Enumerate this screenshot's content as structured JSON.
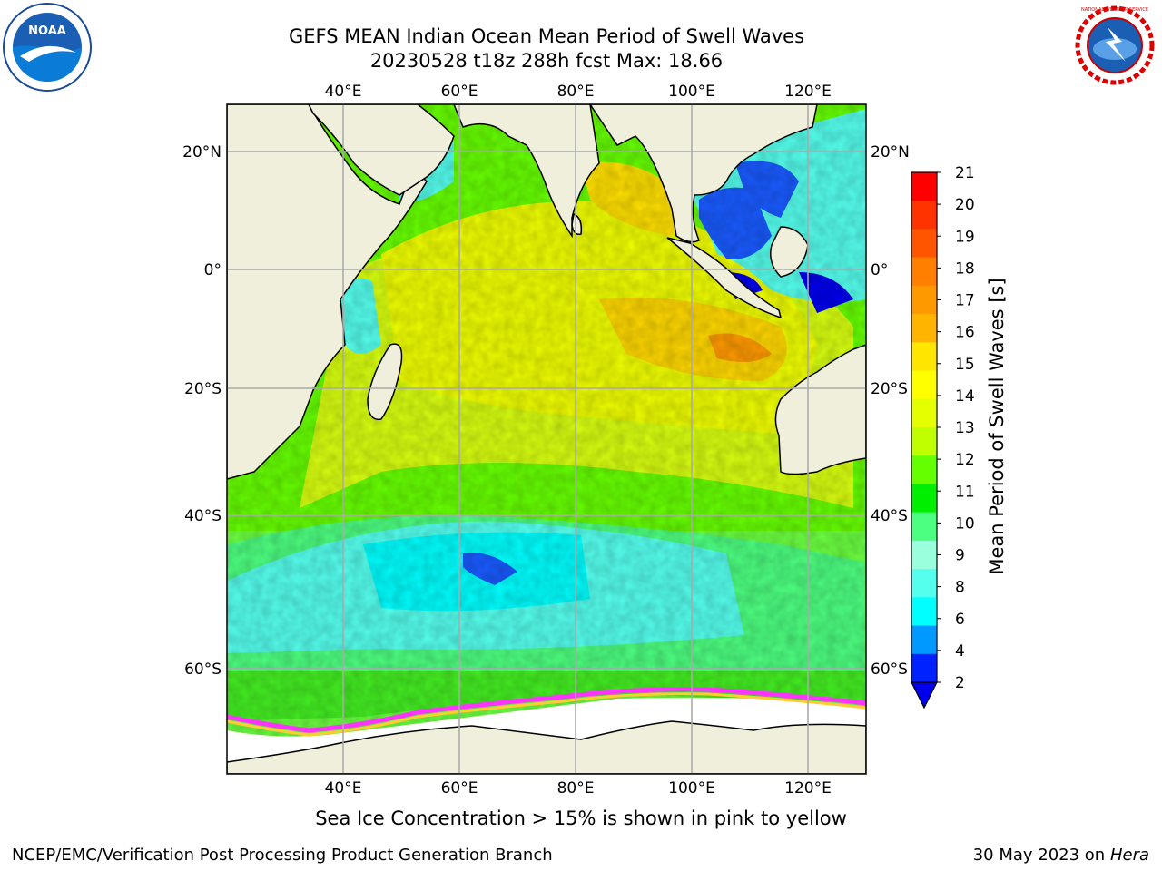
{
  "title": {
    "line1": "GEFS MEAN Indian Ocean Mean Period of Swell Waves",
    "line2": "20230528 t18z 288h fcst   Max: 18.66"
  },
  "map": {
    "top_lon_labels": [
      "40°E",
      "60°E",
      "80°E",
      "100°E",
      "120°E"
    ],
    "bottom_lon_labels": [
      "40°E",
      "60°E",
      "80°E",
      "100°E",
      "120°E"
    ],
    "left_lat_labels": [
      "20°N",
      "0°",
      "20°S",
      "40°S",
      "60°S"
    ],
    "right_lat_labels": [
      "20°N",
      "0°",
      "20°S",
      "40°S",
      "60°S"
    ]
  },
  "colorbar": {
    "label": "Mean Period of Swell Waves [s]",
    "ticks": [
      "21",
      "20",
      "19",
      "18",
      "17",
      "16",
      "15",
      "14",
      "13",
      "12",
      "11",
      "10",
      "9",
      "8",
      "6",
      "4",
      "2"
    ],
    "colors": [
      "#ff0000",
      "#ff3300",
      "#ff5500",
      "#ff8000",
      "#ff9900",
      "#ffb400",
      "#ffe600",
      "#ffff00",
      "#e6ff00",
      "#c0ff00",
      "#66ff00",
      "#00ee00",
      "#4dff80",
      "#99ffdd",
      "#55ffee",
      "#00ffff",
      "#0099ff",
      "#0022ff"
    ],
    "extend_color": "#0000ee"
  },
  "note": "Sea Ice Concentration > 15% is shown in pink to yellow",
  "footer": {
    "left": "NCEP/EMC/Verification Post Processing Product Generation Branch",
    "right_prefix": "30 May 2023 on",
    "right_host": "Hera"
  },
  "logos": {
    "noaa_text": "NOAA",
    "nws_text": "NATIONAL WEATHER SERVICE"
  }
}
